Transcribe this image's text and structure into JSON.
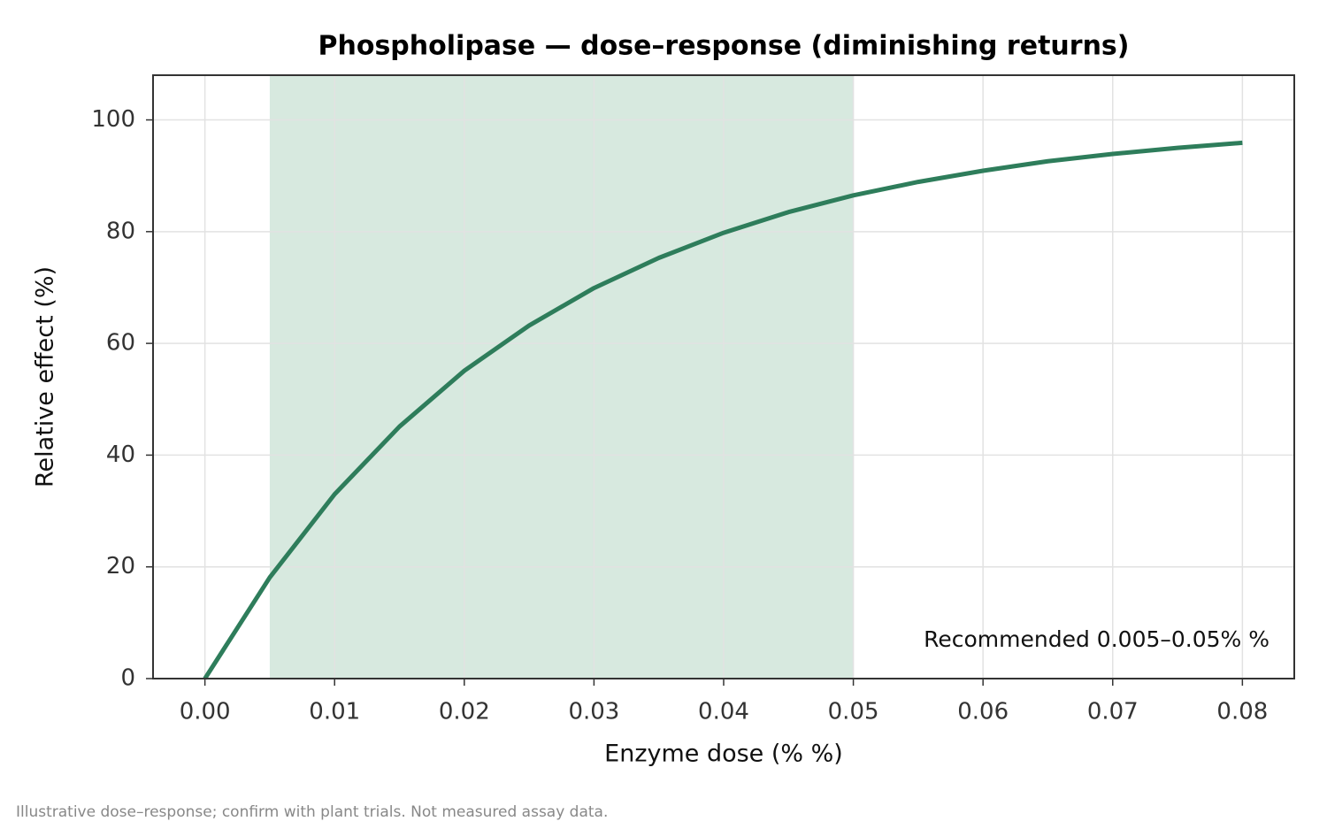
{
  "chart_data": {
    "type": "line",
    "title": "Phospholipase — dose–response (diminishing returns)",
    "x_label": "Enzyme dose (% %)",
    "y_label": "Relative effect (%)",
    "note": "Illustrative dose–response; confirm with plant trials. Not measured assay data.",
    "x": [
      0,
      0.005,
      0.01,
      0.015,
      0.02,
      0.025,
      0.03,
      0.035,
      0.04,
      0.045,
      0.05,
      0.055,
      0.06,
      0.065,
      0.07,
      0.075,
      0.08
    ],
    "values": [
      0,
      18.1,
      33.0,
      45.1,
      55.1,
      63.2,
      69.9,
      75.3,
      79.8,
      83.5,
      86.5,
      88.9,
      90.9,
      92.6,
      93.9,
      95.0,
      95.9
    ],
    "color": "#2e7d5b",
    "band": {
      "x0": 0.005,
      "x1": 0.05,
      "label": "Recommended 0.005–0.05% %",
      "color": "#d7e9df"
    },
    "legend": "lower right",
    "xlim": [
      -0.004,
      0.084
    ],
    "xticks": [
      {
        "value": 0,
        "label": "0.00"
      },
      0.01,
      0.02,
      0.03,
      0.04,
      0.05,
      0.06,
      0.07,
      0.08
    ],
    "ylim": [
      0,
      108
    ],
    "yticks": [
      0,
      20,
      40,
      60,
      80,
      100
    ],
    "grid": true
  }
}
